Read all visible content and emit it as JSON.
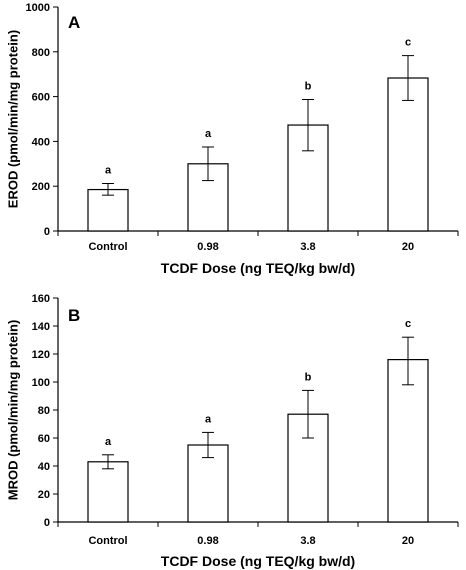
{
  "chart_data": [
    {
      "type": "bar",
      "panel": "A",
      "categories": [
        "Control",
        "0.98",
        "3.8",
        "20"
      ],
      "values": [
        185,
        300,
        473,
        683
      ],
      "error_low": [
        160,
        225,
        358,
        583
      ],
      "error_high": [
        212,
        375,
        587,
        783
      ],
      "significance": [
        "a",
        "a",
        "b",
        "c"
      ],
      "xlabel": "TCDF Dose (ng TEQ/kg bw/d)",
      "ylabel": "EROD (pmol/min/mg protein)",
      "ylim": [
        0,
        1000
      ],
      "yticks": [
        0,
        200,
        400,
        600,
        800,
        1000
      ],
      "grid": false
    },
    {
      "type": "bar",
      "panel": "B",
      "categories": [
        "Control",
        "0.98",
        "3.8",
        "20"
      ],
      "values": [
        43,
        55,
        77,
        116
      ],
      "error_low": [
        38,
        46,
        60,
        98
      ],
      "error_high": [
        48,
        64,
        94,
        132
      ],
      "significance": [
        "a",
        "a",
        "b",
        "c"
      ],
      "xlabel": "TCDF Dose (ng TEQ/kg bw/d)",
      "ylabel": "MROD (pmol/min/mg protein)",
      "ylim": [
        0,
        160
      ],
      "yticks": [
        0,
        20,
        40,
        60,
        80,
        100,
        120,
        140,
        160
      ],
      "grid": false
    }
  ]
}
